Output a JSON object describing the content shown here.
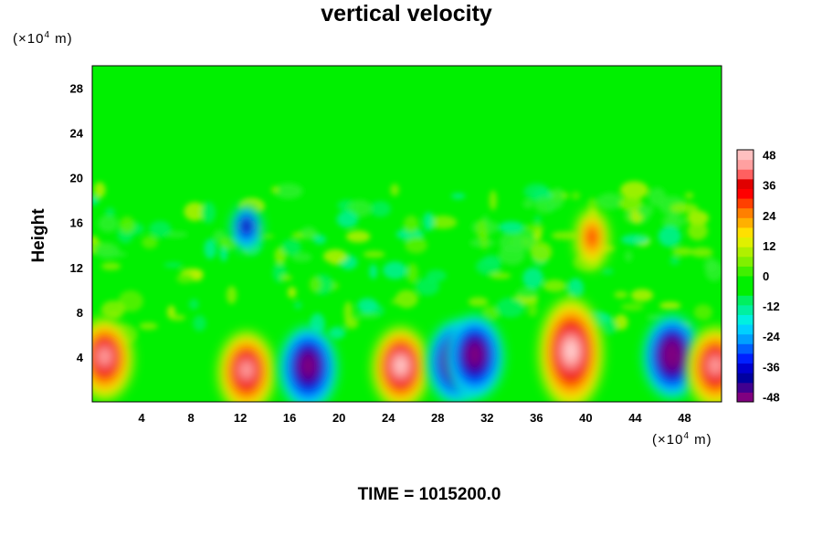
{
  "chart_data": {
    "type": "heatmap",
    "title": "vertical velocity",
    "subtitle": "TIME = 1015200.0",
    "ylabel": "Height",
    "xlabel": "",
    "x_unit": "(×10",
    "x_unit_exp": "4",
    "x_unit_tail": " m)",
    "y_unit": "(×10",
    "y_unit_exp": "4",
    "y_unit_tail": " m)",
    "xlim": [
      0,
      51
    ],
    "ylim": [
      0,
      30
    ],
    "xticks": [
      4,
      8,
      12,
      16,
      20,
      24,
      28,
      32,
      36,
      40,
      44,
      48
    ],
    "yticks": [
      4,
      8,
      12,
      16,
      20,
      24,
      28
    ],
    "colorbar": {
      "vmin": -50,
      "vmax": 50,
      "ticks": [
        48,
        36,
        24,
        12,
        0,
        -12,
        -24,
        -36,
        -48
      ],
      "levels": [
        "#800080",
        "#400090",
        "#0000a0",
        "#0000d0",
        "#0020ff",
        "#0060ff",
        "#00a0ff",
        "#00d0ff",
        "#00f0e0",
        "#00f0a0",
        "#00f060",
        "#00f000",
        "#00f000",
        "#40f000",
        "#80f000",
        "#b0f000",
        "#e0f000",
        "#ffe000",
        "#ffb000",
        "#ff8000",
        "#ff4000",
        "#ff0000",
        "#e00000",
        "#ff6060",
        "#ffa0a0",
        "#ffc0c0"
      ]
    },
    "features": [
      {
        "kind": "updraft",
        "x": 1.0,
        "z": 3.8,
        "peak": 44
      },
      {
        "kind": "updraft",
        "x": 12.5,
        "z": 2.6,
        "peak": 46
      },
      {
        "kind": "downdraft",
        "x": 17.5,
        "z": 3.0,
        "peak": -46
      },
      {
        "kind": "updraft",
        "x": 25.0,
        "z": 3.0,
        "peak": 48
      },
      {
        "kind": "downdraft",
        "x": 29.5,
        "z": 3.5,
        "peak": -48
      },
      {
        "kind": "downdraft",
        "x": 31.0,
        "z": 4.0,
        "peak": -44
      },
      {
        "kind": "updraft",
        "x": 38.8,
        "z": 4.3,
        "peak": 50
      },
      {
        "kind": "downdraft",
        "x": 47.0,
        "z": 4.0,
        "peak": -50
      },
      {
        "kind": "updraft",
        "x": 50.5,
        "z": 3.0,
        "peak": 42
      },
      {
        "kind": "updraft",
        "x": 40.5,
        "z": 14.5,
        "peak": 30
      },
      {
        "kind": "downdraft",
        "x": 12.5,
        "z": 15.5,
        "peak": -36
      }
    ]
  }
}
